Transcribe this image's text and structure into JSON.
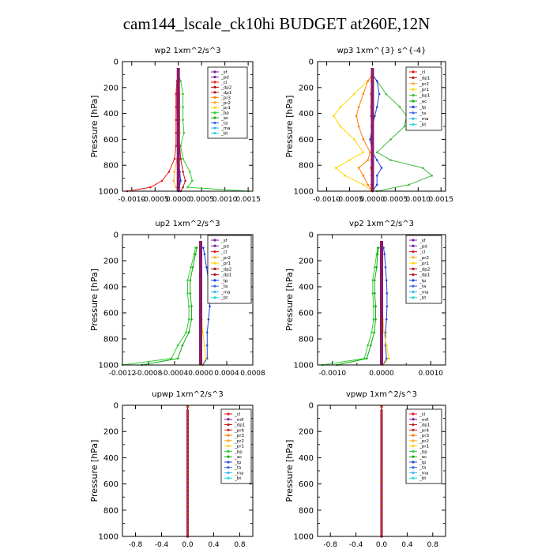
{
  "figure": {
    "title": "cam144_lscale_ck10hi  BUDGET at260E,12N"
  },
  "colors": {
    "sf": "#7a1fa2",
    "pd": "#7a1fa2",
    "cl": "#e81818",
    "dp2": "#b01010",
    "dp1": "#c01818",
    "pr3": "#ff7f00",
    "pr2": "#ffaa33",
    "pr1": "#ffd700",
    "bp": "#33cc33",
    "bp1": "#44bb44",
    "ac": "#11aa11",
    "tp": "#2244dd",
    "ta": "#3366ee",
    "ma": "#33bbee",
    "bt": "#22dddd",
    "mfl": "#7a1fa2",
    "pr4": "#cc2222",
    "bar": "#8b1a6b"
  },
  "chart_data": [
    {
      "type": "line",
      "title": "wp2   1xm^2/s^3",
      "ylabel": "Pressure  [hPa]",
      "ylim": [
        1000,
        0
      ],
      "xlim": [
        -0.0012,
        0.0016
      ],
      "xticks": [
        "-0.0010",
        "-0.0005",
        "0.0000",
        "0.0005",
        "0.0010",
        "0.0015"
      ],
      "xtick_values": [
        -0.001,
        -0.0005,
        0,
        0.0005,
        0.001,
        0.0015
      ],
      "yticks": [
        "0",
        "200",
        "400",
        "600",
        "800",
        "1000"
      ],
      "legend": [
        "_sf",
        "_pd",
        "_cl",
        "_dp2",
        "_dp1",
        "_pr3",
        "_pr2",
        "_pr1",
        "_bp",
        "_ac",
        "_ta",
        "_ma",
        "_bt"
      ],
      "series": [
        {
          "key": "bp",
          "x": [
            0,
            5e-05,
            0.0001,
            0.0001,
            0.0001,
            0.00012,
            5e-05,
            0.0001,
            0.00025,
            0.0003,
            0.0002,
            0.0015
          ],
          "y": [
            100,
            150,
            250,
            350,
            450,
            550,
            650,
            750,
            850,
            920,
            970,
            1000
          ]
        },
        {
          "key": "cl",
          "x": [
            0,
            -3e-05,
            -5e-05,
            -5e-05,
            -5e-05,
            -5e-05,
            -5e-05,
            -8e-05,
            -0.0002,
            -0.00035,
            -0.0006,
            -0.0011
          ],
          "y": [
            100,
            150,
            250,
            350,
            450,
            550,
            650,
            750,
            850,
            920,
            970,
            1000
          ]
        },
        {
          "key": "dp1",
          "x": [
            0,
            -1e-05,
            -3e-05,
            -3e-05,
            -2e-05,
            1e-05,
            3e-05,
            5e-05,
            0.0001,
            0.00015,
            0.0001,
            5e-05
          ],
          "y": [
            100,
            150,
            250,
            350,
            450,
            550,
            650,
            750,
            850,
            920,
            970,
            1000
          ]
        },
        {
          "key": "pr2",
          "x": [
            0,
            2e-05,
            3e-05,
            3e-05,
            3e-05,
            3e-05,
            2e-05,
            -3e-05,
            -8e-05,
            -0.0001,
            -5e-05,
            0
          ],
          "y": [
            100,
            150,
            250,
            350,
            450,
            550,
            650,
            750,
            850,
            920,
            970,
            1000
          ]
        },
        {
          "key": "tp",
          "x": [
            0,
            0,
            0,
            0,
            0,
            0,
            0,
            0,
            3e-05,
            5e-05,
            2e-05,
            0
          ],
          "y": [
            100,
            150,
            250,
            350,
            450,
            550,
            650,
            750,
            850,
            920,
            970,
            1000
          ]
        }
      ]
    },
    {
      "type": "line",
      "title": "wp3   1xm^{3} s^{-4}",
      "ylabel": "Pressure  [hPa]",
      "ylim": [
        1000,
        0
      ],
      "xlim": [
        -0.0012,
        0.0016
      ],
      "xticks": [
        "-0.0010",
        "-0.0005",
        "0.0000",
        "0.0005",
        "0.0010",
        "0.0015"
      ],
      "xtick_values": [
        -0.001,
        -0.0005,
        0,
        0.0005,
        0.001,
        0.0015
      ],
      "yticks": [
        "0",
        "200",
        "400",
        "600",
        "800",
        "1000"
      ],
      "legend": [
        "_cl",
        "_dp1",
        "_pr2",
        "_pr1",
        "_bp1",
        "_ac",
        "_tp",
        "_ta",
        "_ma",
        "_bt"
      ],
      "series": [
        {
          "key": "pr1",
          "x": [
            0,
            -0.0001,
            -0.0004,
            -0.0007,
            -0.00085,
            -0.0007,
            -0.0004,
            -0.0002,
            -0.0005,
            -0.0008,
            -0.0006,
            -0.0002,
            0
          ],
          "y": [
            100,
            150,
            250,
            350,
            420,
            500,
            600,
            700,
            760,
            820,
            880,
            950,
            1000
          ]
        },
        {
          "key": "bp1",
          "x": [
            0,
            0.0001,
            0.0003,
            0.0006,
            0.00075,
            0.0007,
            0.0004,
            0.0001,
            0.0004,
            0.0011,
            0.0013,
            0.0008,
            0.0001
          ],
          "y": [
            100,
            150,
            250,
            350,
            420,
            500,
            600,
            700,
            760,
            820,
            880,
            950,
            1000
          ]
        },
        {
          "key": "pr3",
          "x": [
            0,
            -0.0001,
            -0.0002,
            -0.0003,
            -0.00035,
            -0.0003,
            -0.0002,
            -5e-05,
            -0.0001,
            -0.0003,
            -0.0002,
            -0.0001,
            0
          ],
          "y": [
            100,
            150,
            250,
            350,
            420,
            500,
            600,
            700,
            760,
            820,
            880,
            950,
            1000
          ]
        },
        {
          "key": "tp",
          "x": [
            0,
            0.0001,
            0.00015,
            0.0001,
            5e-05,
            0,
            -5e-05,
            0,
            0.0001,
            0.0002,
            0.0001,
            0.0001,
            0
          ],
          "y": [
            100,
            150,
            250,
            350,
            420,
            500,
            600,
            700,
            760,
            820,
            880,
            950,
            1000
          ]
        },
        {
          "key": "cl",
          "x": [
            0,
            -2e-05,
            -3e-05,
            -3e-05,
            -3e-05,
            -2e-05,
            -2e-05,
            0,
            -2e-05,
            -3e-05,
            -2e-05,
            -2e-05,
            0
          ],
          "y": [
            100,
            150,
            250,
            350,
            420,
            500,
            600,
            700,
            760,
            820,
            880,
            950,
            1000
          ]
        }
      ]
    },
    {
      "type": "line",
      "title": "up2   1xm^2/s^3",
      "ylabel": "Pressure  [hPa]",
      "ylim": [
        1000,
        0
      ],
      "xlim": [
        -0.0012,
        0.0008
      ],
      "xticks": [
        "-0.0012",
        "-0.0008",
        "-0.0004",
        "0.0000",
        "0.0004",
        "0.0008"
      ],
      "xtick_values": [
        -0.0012,
        -0.0008,
        -0.0004,
        0,
        0.0004,
        0.0008
      ],
      "yticks": [
        "0",
        "200",
        "400",
        "600",
        "800",
        "1000"
      ],
      "legend": [
        "_sf",
        "_pd",
        "_cl",
        "_pr2",
        "_pr1",
        "_dp2",
        "_dp1",
        "_tp",
        "_ta",
        "_ma",
        "_bt"
      ],
      "series": [
        {
          "key": "bp",
          "x": [
            -8e-05,
            -0.0001,
            -0.00015,
            -0.0002,
            -0.0002,
            -0.00018,
            -0.00018,
            -0.00022,
            -0.00035,
            -0.00045,
            -0.0012
          ],
          "y": [
            100,
            150,
            250,
            350,
            450,
            550,
            650,
            750,
            850,
            950,
            1000
          ]
        },
        {
          "key": "ac",
          "x": [
            -6e-05,
            -8e-05,
            -0.00012,
            -0.00016,
            -0.00016,
            -0.00014,
            -0.00014,
            -0.00018,
            -0.00028,
            -0.00035,
            -0.0009
          ],
          "y": [
            100,
            150,
            250,
            350,
            450,
            550,
            650,
            750,
            850,
            950,
            1000
          ]
        },
        {
          "key": "tp",
          "x": [
            4e-05,
            6e-05,
            9e-05,
            0.00012,
            0.00014,
            0.00014,
            0.00012,
            0.0001,
            0.0001,
            0.0001,
            3e-05
          ],
          "y": [
            100,
            150,
            250,
            350,
            450,
            550,
            650,
            750,
            850,
            950,
            1000
          ]
        },
        {
          "key": "pr1",
          "x": [
            0,
            1e-05,
            1e-05,
            1e-05,
            1e-05,
            1e-05,
            2e-05,
            3e-05,
            6e-05,
            8e-05,
            2e-05
          ],
          "y": [
            100,
            150,
            250,
            350,
            450,
            550,
            650,
            750,
            850,
            950,
            1000
          ]
        }
      ]
    },
    {
      "type": "line",
      "title": "vp2   1xm^2/s^3",
      "ylabel": "Pressure  [hPa]",
      "ylim": [
        1000,
        0
      ],
      "xlim": [
        -0.0013,
        0.0013
      ],
      "xticks": [
        "-0.0010",
        "0.0000",
        "0.0010"
      ],
      "xtick_values": [
        -0.001,
        0,
        0.001
      ],
      "xminor_values": [
        -0.0005,
        0.0005
      ],
      "yticks": [
        "0",
        "200",
        "400",
        "600",
        "800",
        "1000"
      ],
      "legend": [
        "_sf",
        "_pd",
        "_cl",
        "_pr2",
        "_pr1",
        "_dp2",
        "_dp1",
        "_tp",
        "_ta",
        "_ma",
        "_bt"
      ],
      "series": [
        {
          "key": "bp",
          "x": [
            -8e-05,
            -0.0001,
            -0.00014,
            -0.00018,
            -0.00018,
            -0.00016,
            -0.00016,
            -0.0002,
            -0.00028,
            -0.00035,
            -0.0012
          ],
          "y": [
            100,
            150,
            250,
            350,
            450,
            550,
            650,
            750,
            850,
            950,
            1000
          ]
        },
        {
          "key": "ac",
          "x": [
            -6e-05,
            -8e-05,
            -0.0001,
            -0.00014,
            -0.00014,
            -0.00012,
            -0.00012,
            -0.00015,
            -0.00022,
            -0.0003,
            -0.0009
          ],
          "y": [
            100,
            150,
            250,
            350,
            450,
            550,
            650,
            750,
            850,
            950,
            1000
          ]
        },
        {
          "key": "tp",
          "x": [
            4e-05,
            6e-05,
            8e-05,
            0.0001,
            0.00011,
            0.00011,
            0.0001,
            8e-05,
            8e-05,
            0.0001,
            3e-05
          ],
          "y": [
            100,
            150,
            250,
            350,
            450,
            550,
            650,
            750,
            850,
            950,
            1000
          ]
        },
        {
          "key": "pr1",
          "x": [
            0,
            1e-05,
            1e-05,
            1e-05,
            1e-05,
            2e-05,
            3e-05,
            5e-05,
            0.0001,
            0.00015,
            3e-05
          ],
          "y": [
            100,
            150,
            250,
            350,
            450,
            550,
            650,
            750,
            850,
            950,
            1000
          ]
        }
      ]
    },
    {
      "type": "line",
      "title": "upwp   1xm^2/s^3",
      "ylabel": "Pressure  [hPa]",
      "ylim": [
        1000,
        0
      ],
      "xlim": [
        -1,
        1
      ],
      "xticks": [
        "-0.8",
        "-0.4",
        "0.0",
        "0.4",
        "0.8"
      ],
      "xtick_values": [
        -0.8,
        -0.4,
        0,
        0.4,
        0.8
      ],
      "yticks": [
        "0",
        "200",
        "400",
        "600",
        "800",
        "1000"
      ],
      "legend": [
        "_cl",
        "_mfl",
        "_dp1",
        "_pr4",
        "_pr3",
        "_pr2",
        "_pr1",
        "_bp",
        "_ac",
        "_tp",
        "_ta",
        "_ma",
        "_bt"
      ],
      "series": []
    },
    {
      "type": "line",
      "title": "vpwp   1xm^2/s^3",
      "ylabel": "Pressure  [hPa]",
      "ylim": [
        1000,
        0
      ],
      "xlim": [
        -1,
        1
      ],
      "xticks": [
        "-0.8",
        "-0.4",
        "0.0",
        "0.4",
        "0.8"
      ],
      "xtick_values": [
        -0.8,
        -0.4,
        0,
        0.4,
        0.8
      ],
      "yticks": [
        "0",
        "200",
        "400",
        "600",
        "800",
        "1000"
      ],
      "legend": [
        "_cl",
        "_mfl",
        "_dp1",
        "_pr4",
        "_pr3",
        "_pr2",
        "_pr1",
        "_bp",
        "_ac",
        "_tp",
        "_ta",
        "_ma",
        "_bt"
      ],
      "series": []
    }
  ]
}
